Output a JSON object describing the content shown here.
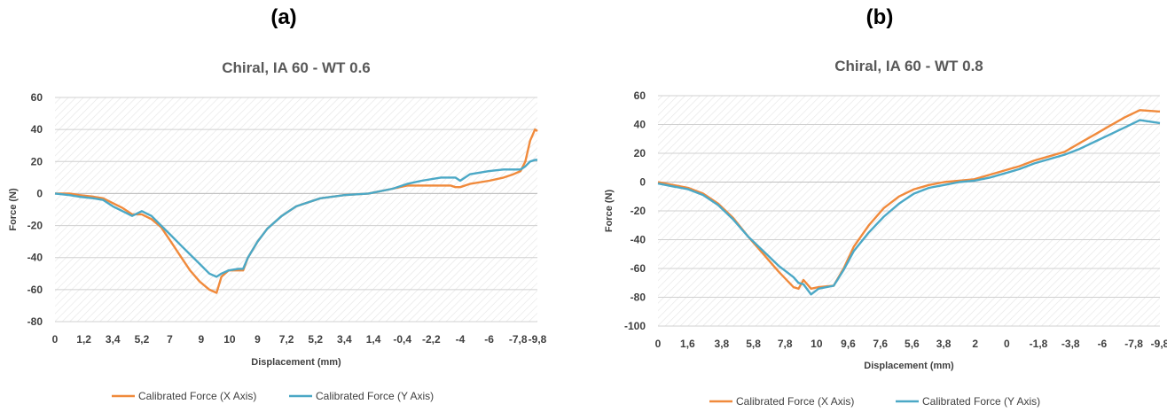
{
  "colors": {
    "x_series": "#F08A3C",
    "y_series": "#4BA8C6",
    "axis": "#7F7F7F",
    "text": "#404040"
  },
  "panels": [
    {
      "label": "(a)"
    },
    {
      "label": "(b)"
    }
  ],
  "chart_data": [
    {
      "type": "line",
      "title": "Chiral, IA 60 - WT 0.6",
      "xlabel": "Displacement (mm)",
      "ylabel": "Force (N)",
      "ylim": [
        -80,
        60
      ],
      "yticks": [
        60,
        40,
        20,
        0,
        -20,
        -40,
        -60,
        -80
      ],
      "x_tick_labels": [
        "0",
        "1,2",
        "3,4",
        "5,2",
        "7",
        "9",
        "10",
        "9",
        "7,2",
        "5,2",
        "3,4",
        "1,4",
        "-0,4",
        "-2,2",
        "-4",
        "-6",
        "-7,8",
        "-9,8"
      ],
      "x_tick_fractions": [
        0,
        0.06,
        0.12,
        0.18,
        0.238,
        0.303,
        0.362,
        0.42,
        0.48,
        0.54,
        0.6,
        0.66,
        0.72,
        0.78,
        0.84,
        0.9,
        0.96,
        1.0
      ],
      "grid": true,
      "legend_position": "bottom",
      "series": [
        {
          "name": "Calibrated Force (X Axis)",
          "x": [
            0,
            0.03,
            0.05,
            0.08,
            0.1,
            0.12,
            0.14,
            0.16,
            0.18,
            0.2,
            0.22,
            0.24,
            0.26,
            0.28,
            0.3,
            0.32,
            0.335,
            0.345,
            0.36,
            0.38,
            0.39,
            0.4,
            0.42,
            0.44,
            0.47,
            0.5,
            0.55,
            0.6,
            0.65,
            0.7,
            0.73,
            0.76,
            0.8,
            0.82,
            0.83,
            0.84,
            0.86,
            0.9,
            0.93,
            0.95,
            0.965,
            0.975,
            0.985,
            0.995,
            1.0
          ],
          "values": [
            0,
            0,
            -1,
            -2,
            -3,
            -6,
            -9,
            -13,
            -13,
            -16,
            -21,
            -30,
            -39,
            -48,
            -55,
            -60,
            -62,
            -52,
            -48,
            -48,
            -48,
            -40,
            -30,
            -22,
            -14,
            -8,
            -3,
            -1,
            0,
            3,
            5,
            5,
            5,
            5,
            4,
            4,
            6,
            8,
            10,
            12,
            14,
            20,
            33,
            40,
            39
          ]
        },
        {
          "name": "Calibrated Force (Y Axis)",
          "x": [
            0,
            0.03,
            0.05,
            0.08,
            0.1,
            0.12,
            0.14,
            0.16,
            0.18,
            0.2,
            0.22,
            0.24,
            0.26,
            0.28,
            0.3,
            0.32,
            0.335,
            0.345,
            0.36,
            0.38,
            0.39,
            0.4,
            0.42,
            0.44,
            0.47,
            0.5,
            0.55,
            0.6,
            0.65,
            0.7,
            0.73,
            0.76,
            0.8,
            0.82,
            0.83,
            0.84,
            0.86,
            0.9,
            0.93,
            0.95,
            0.965,
            0.975,
            0.985,
            0.995,
            1.0
          ],
          "values": [
            0,
            -1,
            -2,
            -3,
            -4,
            -8,
            -11,
            -14,
            -11,
            -14,
            -20,
            -26,
            -32,
            -38,
            -44,
            -50,
            -52,
            -50,
            -48,
            -47,
            -47,
            -40,
            -30,
            -22,
            -14,
            -8,
            -3,
            -1,
            0,
            3,
            6,
            8,
            10,
            10,
            10,
            8,
            12,
            14,
            15,
            15,
            15,
            17,
            20,
            21,
            21
          ]
        }
      ]
    },
    {
      "type": "line",
      "title": "Chiral, IA 60 - WT 0.8",
      "xlabel": "Displacement (mm)",
      "ylabel": "Force (N)",
      "ylim": [
        -100,
        60
      ],
      "yticks": [
        60,
        40,
        20,
        0,
        -20,
        -40,
        -60,
        -80,
        -100
      ],
      "x_tick_labels": [
        "0",
        "1,6",
        "3,8",
        "5,8",
        "7,8",
        "10",
        "9,6",
        "7,6",
        "5,6",
        "3,8",
        "2",
        "0",
        "-1,8",
        "-3,8",
        "-6",
        "-7,8",
        "-9,8"
      ],
      "x_tick_fractions": [
        0,
        0.059,
        0.127,
        0.19,
        0.253,
        0.316,
        0.379,
        0.443,
        0.506,
        0.569,
        0.632,
        0.695,
        0.758,
        0.822,
        0.885,
        0.948,
        1.0
      ],
      "grid": true,
      "legend_position": "bottom",
      "series": [
        {
          "name": "Calibrated Force (X Axis)",
          "x": [
            0,
            0.03,
            0.06,
            0.09,
            0.12,
            0.15,
            0.18,
            0.21,
            0.24,
            0.27,
            0.28,
            0.29,
            0.305,
            0.32,
            0.35,
            0.37,
            0.39,
            0.42,
            0.45,
            0.48,
            0.51,
            0.54,
            0.57,
            0.6,
            0.63,
            0.66,
            0.69,
            0.72,
            0.75,
            0.78,
            0.81,
            0.84,
            0.87,
            0.9,
            0.93,
            0.96,
            1.0
          ],
          "values": [
            0,
            -2,
            -4,
            -8,
            -15,
            -25,
            -38,
            -50,
            -62,
            -73,
            -74,
            -68,
            -74,
            -73,
            -72,
            -60,
            -45,
            -30,
            -18,
            -10,
            -5,
            -2,
            0,
            1,
            2,
            5,
            8,
            11,
            15,
            18,
            21,
            27,
            33,
            39,
            45,
            50,
            49
          ]
        },
        {
          "name": "Calibrated Force (Y Axis)",
          "x": [
            0,
            0.03,
            0.06,
            0.09,
            0.12,
            0.15,
            0.18,
            0.21,
            0.24,
            0.27,
            0.28,
            0.29,
            0.305,
            0.32,
            0.35,
            0.37,
            0.39,
            0.42,
            0.45,
            0.48,
            0.51,
            0.54,
            0.57,
            0.6,
            0.63,
            0.66,
            0.69,
            0.72,
            0.75,
            0.78,
            0.81,
            0.84,
            0.87,
            0.9,
            0.93,
            0.96,
            1.0
          ],
          "values": [
            -1,
            -3,
            -5,
            -9,
            -16,
            -26,
            -38,
            -48,
            -58,
            -66,
            -70,
            -71,
            -78,
            -74,
            -72,
            -61,
            -48,
            -35,
            -24,
            -15,
            -8,
            -4,
            -2,
            0,
            1,
            3,
            6,
            9,
            13,
            16,
            19,
            23,
            28,
            33,
            38,
            43,
            41
          ]
        }
      ]
    }
  ]
}
